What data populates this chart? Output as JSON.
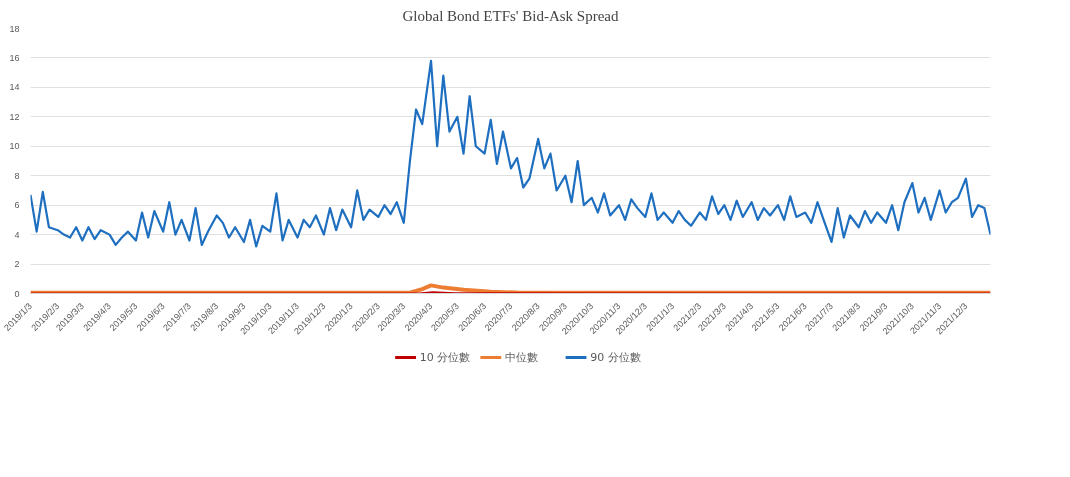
{
  "chart_data": {
    "type": "line",
    "title": "Global Bond ETFs' Bid-Ask Spread",
    "xlim": [
      "2019-01-03",
      "2021-12-31"
    ],
    "ylim": [
      0,
      18
    ],
    "yticks": [
      0,
      2,
      4,
      6,
      8,
      10,
      12,
      14,
      16,
      18
    ],
    "xticks": [
      {
        "value": "2019-01-03",
        "label": "2019/1/3"
      },
      {
        "value": "2019-02-03",
        "label": "2019/2/3"
      },
      {
        "value": "2019-03-03",
        "label": "2019/3/3"
      },
      {
        "value": "2019-04-03",
        "label": "2019/4/3"
      },
      {
        "value": "2019-05-03",
        "label": "2019/5/3"
      },
      {
        "value": "2019-06-03",
        "label": "2019/6/3"
      },
      {
        "value": "2019-07-03",
        "label": "2019/7/3"
      },
      {
        "value": "2019-08-03",
        "label": "2019/8/3"
      },
      {
        "value": "2019-09-03",
        "label": "2019/9/3"
      },
      {
        "value": "2019-10-03",
        "label": "2019/10/3"
      },
      {
        "value": "2019-11-03",
        "label": "2019/11/3"
      },
      {
        "value": "2019-12-03",
        "label": "2019/12/3"
      },
      {
        "value": "2020-01-03",
        "label": "2020/1/3"
      },
      {
        "value": "2020-02-03",
        "label": "2020/2/3"
      },
      {
        "value": "2020-03-03",
        "label": "2020/3/3"
      },
      {
        "value": "2020-04-03",
        "label": "2020/4/3"
      },
      {
        "value": "2020-05-03",
        "label": "2020/5/3"
      },
      {
        "value": "2020-06-03",
        "label": "2020/6/3"
      },
      {
        "value": "2020-07-03",
        "label": "2020/7/3"
      },
      {
        "value": "2020-08-03",
        "label": "2020/8/3"
      },
      {
        "value": "2020-09-03",
        "label": "2020/9/3"
      },
      {
        "value": "2020-10-03",
        "label": "2020/10/3"
      },
      {
        "value": "2020-11-03",
        "label": "2020/11/3"
      },
      {
        "value": "2020-12-03",
        "label": "2020/12/3"
      },
      {
        "value": "2021-01-03",
        "label": "2021/1/3"
      },
      {
        "value": "2021-02-03",
        "label": "2021/2/3"
      },
      {
        "value": "2021-03-03",
        "label": "2021/3/3"
      },
      {
        "value": "2021-04-03",
        "label": "2021/4/3"
      },
      {
        "value": "2021-05-03",
        "label": "2021/5/3"
      },
      {
        "value": "2021-06-03",
        "label": "2021/6/3"
      },
      {
        "value": "2021-07-03",
        "label": "2021/7/3"
      },
      {
        "value": "2021-08-03",
        "label": "2021/8/3"
      },
      {
        "value": "2021-09-03",
        "label": "2021/9/3"
      },
      {
        "value": "2021-10-03",
        "label": "2021/10/3"
      },
      {
        "value": "2021-11-03",
        "label": "2021/11/3"
      },
      {
        "value": "2021-12-03",
        "label": "2021/12/3"
      }
    ],
    "grid": "y",
    "legend": "bottom",
    "series": [
      {
        "name": "10 分位數",
        "color": "#c00000",
        "x": [
          "2019-01-03",
          "2020-03-20",
          "2020-04-05",
          "2020-05-01",
          "2021-12-31"
        ],
        "values": [
          0.02,
          0.02,
          0.1,
          0.03,
          0.02
        ]
      },
      {
        "name": "中位數",
        "color": "#ed7d31",
        "x": [
          "2019-01-03",
          "2020-03-10",
          "2020-03-24",
          "2020-04-03",
          "2020-04-17",
          "2020-05-10",
          "2020-06-10",
          "2020-07-10",
          "2021-12-31"
        ],
        "values": [
          0.05,
          0.05,
          0.3,
          0.55,
          0.4,
          0.25,
          0.12,
          0.06,
          0.05
        ]
      },
      {
        "name": "90 分位數",
        "color": "#1f6fc0",
        "x": [
          "2019-01-03",
          "2019-01-10",
          "2019-01-17",
          "2019-01-24",
          "2019-02-03",
          "2019-02-10",
          "2019-02-17",
          "2019-02-24",
          "2019-03-03",
          "2019-03-10",
          "2019-03-17",
          "2019-03-24",
          "2019-04-03",
          "2019-04-10",
          "2019-04-17",
          "2019-04-24",
          "2019-05-03",
          "2019-05-10",
          "2019-05-17",
          "2019-05-24",
          "2019-06-03",
          "2019-06-10",
          "2019-06-17",
          "2019-06-24",
          "2019-07-03",
          "2019-07-10",
          "2019-07-17",
          "2019-07-24",
          "2019-08-03",
          "2019-08-10",
          "2019-08-17",
          "2019-08-24",
          "2019-09-03",
          "2019-09-10",
          "2019-09-17",
          "2019-09-24",
          "2019-10-03",
          "2019-10-10",
          "2019-10-17",
          "2019-10-24",
          "2019-11-03",
          "2019-11-10",
          "2019-11-17",
          "2019-11-24",
          "2019-12-03",
          "2019-12-10",
          "2019-12-17",
          "2019-12-24",
          "2020-01-03",
          "2020-01-10",
          "2020-01-17",
          "2020-01-24",
          "2020-02-03",
          "2020-02-10",
          "2020-02-17",
          "2020-02-24",
          "2020-03-03",
          "2020-03-10",
          "2020-03-17",
          "2020-03-24",
          "2020-04-03",
          "2020-04-10",
          "2020-04-17",
          "2020-04-24",
          "2020-05-03",
          "2020-05-10",
          "2020-05-17",
          "2020-05-24",
          "2020-06-03",
          "2020-06-10",
          "2020-06-17",
          "2020-06-24",
          "2020-07-03",
          "2020-07-10",
          "2020-07-17",
          "2020-07-24",
          "2020-08-03",
          "2020-08-10",
          "2020-08-17",
          "2020-08-24",
          "2020-09-03",
          "2020-09-10",
          "2020-09-17",
          "2020-09-24",
          "2020-10-03",
          "2020-10-10",
          "2020-10-17",
          "2020-10-24",
          "2020-11-03",
          "2020-11-10",
          "2020-11-17",
          "2020-11-24",
          "2020-12-03",
          "2020-12-10",
          "2020-12-17",
          "2020-12-24",
          "2021-01-03",
          "2021-01-10",
          "2021-01-17",
          "2021-01-24",
          "2021-02-03",
          "2021-02-10",
          "2021-02-17",
          "2021-02-24",
          "2021-03-03",
          "2021-03-10",
          "2021-03-17",
          "2021-03-24",
          "2021-04-03",
          "2021-04-10",
          "2021-04-17",
          "2021-04-24",
          "2021-05-03",
          "2021-05-10",
          "2021-05-17",
          "2021-05-24",
          "2021-06-03",
          "2021-06-10",
          "2021-06-17",
          "2021-06-24",
          "2021-07-03",
          "2021-07-10",
          "2021-07-17",
          "2021-07-24",
          "2021-08-03",
          "2021-08-10",
          "2021-08-17",
          "2021-08-24",
          "2021-09-03",
          "2021-09-10",
          "2021-09-17",
          "2021-09-24",
          "2021-10-03",
          "2021-10-10",
          "2021-10-17",
          "2021-10-24",
          "2021-11-03",
          "2021-11-10",
          "2021-11-17",
          "2021-11-24",
          "2021-12-03",
          "2021-12-10",
          "2021-12-17",
          "2021-12-24",
          "2021-12-31"
        ],
        "values": [
          6.7,
          4.2,
          6.9,
          4.5,
          4.3,
          4.0,
          3.8,
          4.5,
          3.6,
          4.5,
          3.7,
          4.3,
          4.0,
          3.3,
          3.8,
          4.2,
          3.6,
          5.5,
          3.8,
          5.6,
          4.2,
          6.2,
          4.0,
          5.0,
          3.6,
          5.8,
          3.3,
          4.2,
          5.3,
          4.8,
          3.8,
          4.5,
          3.5,
          5.0,
          3.2,
          4.6,
          4.2,
          6.8,
          3.6,
          5.0,
          3.8,
          5.0,
          4.5,
          5.3,
          4.0,
          5.8,
          4.3,
          5.7,
          4.5,
          7.0,
          5.0,
          5.7,
          5.2,
          6.0,
          5.4,
          6.2,
          4.8,
          9.0,
          12.5,
          11.5,
          15.8,
          10.0,
          14.8,
          11.0,
          12.0,
          9.5,
          13.4,
          10.0,
          9.5,
          11.8,
          8.8,
          11.0,
          8.5,
          9.2,
          7.2,
          7.8,
          10.5,
          8.5,
          9.5,
          7.0,
          8.0,
          6.2,
          9.0,
          6.0,
          6.5,
          5.5,
          6.8,
          5.3,
          6.0,
          5.0,
          6.4,
          5.8,
          5.2,
          6.8,
          5.0,
          5.5,
          4.8,
          5.6,
          5.0,
          4.6,
          5.5,
          5.0,
          6.6,
          5.4,
          6.0,
          5.0,
          6.3,
          5.2,
          6.2,
          5.0,
          5.8,
          5.3,
          6.0,
          5.0,
          6.6,
          5.2,
          5.5,
          4.8,
          6.2,
          5.0,
          3.5,
          5.8,
          3.8,
          5.3,
          4.5,
          5.6,
          4.8,
          5.5,
          4.8,
          6.0,
          4.3,
          6.2,
          7.5,
          5.5,
          6.5,
          5.0,
          7.0,
          5.5,
          6.2,
          6.5,
          7.8,
          5.2,
          6.0,
          5.8,
          4.0
        ]
      }
    ]
  }
}
